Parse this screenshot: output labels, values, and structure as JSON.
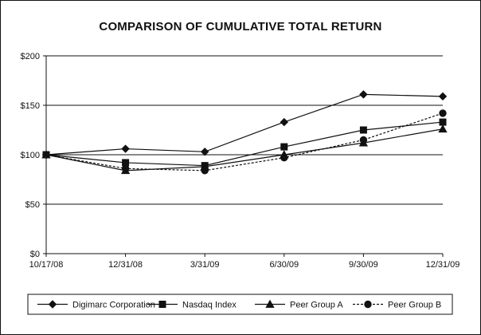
{
  "chart_data": {
    "type": "line",
    "title": "COMPARISON OF CUMULATIVE TOTAL RETURN",
    "xlabel": "",
    "ylabel": "",
    "categories": [
      "10/17/08",
      "12/31/08",
      "3/31/09",
      "6/30/09",
      "9/30/09",
      "12/31/09"
    ],
    "ylim": [
      0,
      200
    ],
    "yticks": [
      0,
      50,
      100,
      150,
      200
    ],
    "ytick_labels": [
      "$0",
      "$50",
      "$100",
      "$150",
      "$200"
    ],
    "grid": "horizontal",
    "legend_position": "bottom",
    "series": [
      {
        "name": "Digimarc Corporation",
        "values": [
          100,
          106,
          103,
          133,
          161,
          159
        ],
        "marker": "diamond",
        "line_style": "solid",
        "color": "#111111"
      },
      {
        "name": "Nasdaq Index",
        "values": [
          100,
          92,
          89,
          108,
          125,
          133
        ],
        "marker": "square",
        "line_style": "solid",
        "color": "#111111"
      },
      {
        "name": "Peer Group A",
        "values": [
          100,
          84,
          88,
          100,
          112,
          126
        ],
        "marker": "triangle",
        "line_style": "solid",
        "color": "#111111"
      },
      {
        "name": "Peer Group B",
        "values": [
          100,
          86,
          84,
          97,
          115,
          142
        ],
        "marker": "circle",
        "line_style": "dashed",
        "color": "#111111"
      }
    ]
  }
}
